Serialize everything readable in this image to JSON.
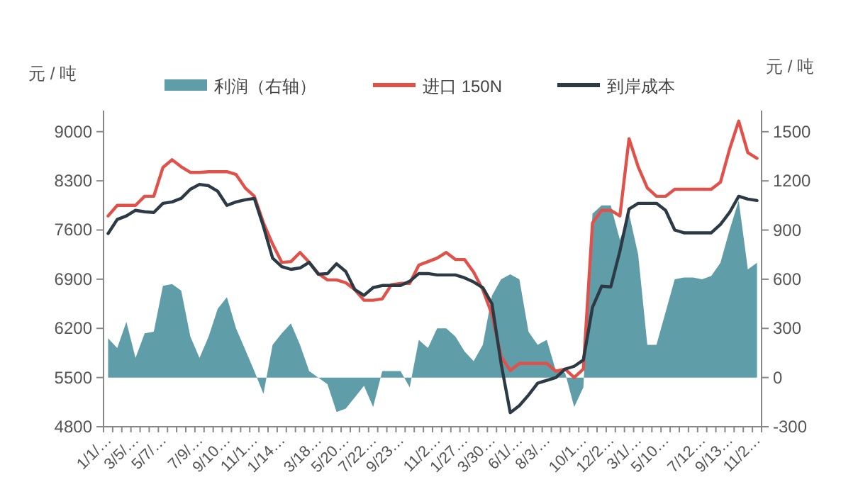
{
  "chart_data": {
    "type": "line",
    "ylabel": "元 / 吨",
    "y2label": "元 / 吨",
    "legend": "top",
    "grid": false,
    "categories": [
      "1/1/…",
      null,
      null,
      "3/5/…",
      null,
      null,
      "5/7/…",
      null,
      null,
      null,
      "7/9/…",
      null,
      null,
      "9/10…",
      null,
      null,
      "11/1…",
      null,
      null,
      "1/14…",
      null,
      null,
      null,
      "3/18…",
      null,
      null,
      "5/20…",
      null,
      null,
      "7/22…",
      null,
      null,
      "9/23…",
      null,
      null,
      null,
      "11/2…",
      null,
      null,
      "1/27…",
      null,
      null,
      "3/30…",
      null,
      null,
      "6/1/…",
      null,
      null,
      "8/3/…",
      null,
      null,
      null,
      "10/1…",
      null,
      null,
      "12/2…",
      null,
      null,
      "3/1/…",
      null,
      null,
      "5/10…",
      null,
      null,
      null,
      "7/12…",
      null,
      null,
      "9/13…",
      null,
      null,
      "11/2…"
    ],
    "ylim": [
      4800,
      9300
    ],
    "yticks": [
      4800,
      5500,
      6200,
      6900,
      7600,
      8300,
      9000
    ],
    "y2lim": [
      -300,
      1629
    ],
    "y2ticks": [
      -300,
      0,
      300,
      600,
      900,
      1200,
      1500
    ],
    "series": [
      {
        "name": "利润（右轴）",
        "type": "area",
        "axis": "y2",
        "color": "#5f9ea8",
        "values": [
          240,
          180,
          340,
          120,
          270,
          280,
          560,
          570,
          530,
          250,
          120,
          250,
          420,
          490,
          300,
          170,
          40,
          -100,
          200,
          270,
          330,
          200,
          40,
          0,
          -40,
          -210,
          -190,
          -120,
          -50,
          -180,
          40,
          40,
          40,
          -60,
          230,
          180,
          300,
          300,
          250,
          160,
          100,
          200,
          500,
          600,
          630,
          600,
          280,
          200,
          230,
          40,
          30,
          -180,
          -60,
          1000,
          1050,
          1050,
          840,
          1000,
          750,
          200,
          200,
          400,
          600,
          610,
          610,
          600,
          620,
          700,
          900,
          1080,
          660,
          700
        ]
      },
      {
        "name": "进口 150N",
        "type": "line",
        "color": "#e0514a",
        "values": [
          7800,
          7950,
          7950,
          7950,
          8080,
          8080,
          8490,
          8600,
          8500,
          8420,
          8420,
          8430,
          8430,
          8430,
          8390,
          8200,
          8080,
          7700,
          7400,
          7140,
          7150,
          7280,
          7140,
          6980,
          6890,
          6890,
          6850,
          6750,
          6600,
          6600,
          6620,
          6820,
          6840,
          6840,
          7100,
          7150,
          7200,
          7280,
          7180,
          7180,
          7000,
          6750,
          6400,
          5800,
          5600,
          5700,
          5700,
          5700,
          5700,
          5590,
          5620,
          5500,
          5620,
          7700,
          7880,
          7880,
          7800,
          8900,
          8500,
          8200,
          8080,
          8080,
          8180,
          8180,
          8180,
          8180,
          8180,
          8280,
          8750,
          9150,
          8700,
          8620
        ]
      },
      {
        "name": "到岸成本",
        "type": "line",
        "color": "#2b3a45",
        "values": [
          7550,
          7750,
          7800,
          7880,
          7860,
          7850,
          7980,
          8000,
          8050,
          8180,
          8250,
          8230,
          8150,
          7950,
          8000,
          8030,
          8050,
          7650,
          7200,
          7080,
          7040,
          7060,
          7140,
          6970,
          6980,
          7120,
          7010,
          6750,
          6670,
          6780,
          6810,
          6810,
          6810,
          6870,
          6980,
          6980,
          6960,
          6960,
          6960,
          6920,
          6860,
          6780,
          6550,
          5700,
          5000,
          5100,
          5250,
          5420,
          5460,
          5500,
          5620,
          5660,
          5750,
          6500,
          6800,
          6790,
          7300,
          7900,
          7980,
          7980,
          7980,
          7880,
          7600,
          7560,
          7560,
          7560,
          7560,
          7680,
          7850,
          8080,
          8040,
          8020
        ]
      }
    ]
  }
}
